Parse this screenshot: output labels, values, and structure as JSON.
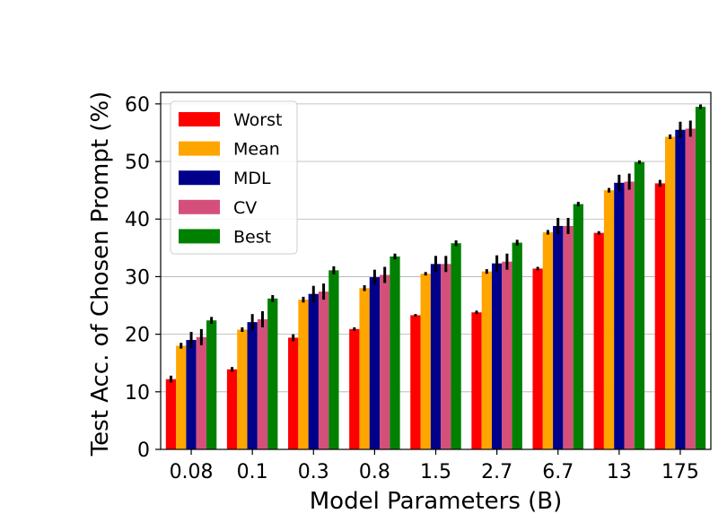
{
  "chart_data": {
    "type": "bar",
    "xlabel": "Model Parameters (B)",
    "ylabel": "Test Acc. of Chosen Prompt (%)",
    "categories": [
      "0.08",
      "0.1",
      "0.3",
      "0.8",
      "1.5",
      "2.7",
      "6.7",
      "13",
      "175"
    ],
    "ylim": [
      0,
      62
    ],
    "yticks": [
      0,
      10,
      20,
      30,
      40,
      50,
      60
    ],
    "grid": "horizontal",
    "legend_position": "top-left",
    "series": [
      {
        "name": "Worst",
        "color": "#ff0000",
        "values": [
          12.2,
          13.9,
          19.4,
          20.9,
          23.3,
          23.8,
          31.4,
          37.6,
          46.2
        ],
        "errors": [
          0.6,
          0.4,
          0.6,
          0.3,
          0.2,
          0.3,
          0.3,
          0.3,
          0.6
        ]
      },
      {
        "name": "Mean",
        "color": "#ffa500",
        "values": [
          18.0,
          20.8,
          26.0,
          28.0,
          30.5,
          30.9,
          37.7,
          45.0,
          54.3
        ],
        "errors": [
          0.5,
          0.4,
          0.5,
          0.5,
          0.3,
          0.4,
          0.4,
          0.4,
          0.4
        ]
      },
      {
        "name": "MDL",
        "color": "#00008b",
        "values": [
          19.0,
          22.1,
          27.0,
          29.9,
          32.2,
          32.3,
          38.8,
          46.3,
          55.5
        ],
        "errors": [
          1.4,
          1.4,
          1.4,
          1.3,
          1.4,
          1.4,
          1.4,
          1.4,
          1.4
        ]
      },
      {
        "name": "CV",
        "color": "#d4507a",
        "values": [
          19.5,
          22.6,
          27.4,
          30.3,
          32.2,
          32.6,
          38.8,
          46.5,
          55.7
        ],
        "errors": [
          1.4,
          1.4,
          1.4,
          1.4,
          1.4,
          1.4,
          1.4,
          1.4,
          1.4
        ]
      },
      {
        "name": "Best",
        "color": "#008000",
        "values": [
          22.4,
          26.2,
          31.1,
          33.5,
          35.8,
          35.9,
          42.6,
          49.9,
          59.5
        ],
        "errors": [
          0.6,
          0.6,
          0.7,
          0.5,
          0.5,
          0.5,
          0.4,
          0.3,
          0.4
        ]
      }
    ]
  }
}
